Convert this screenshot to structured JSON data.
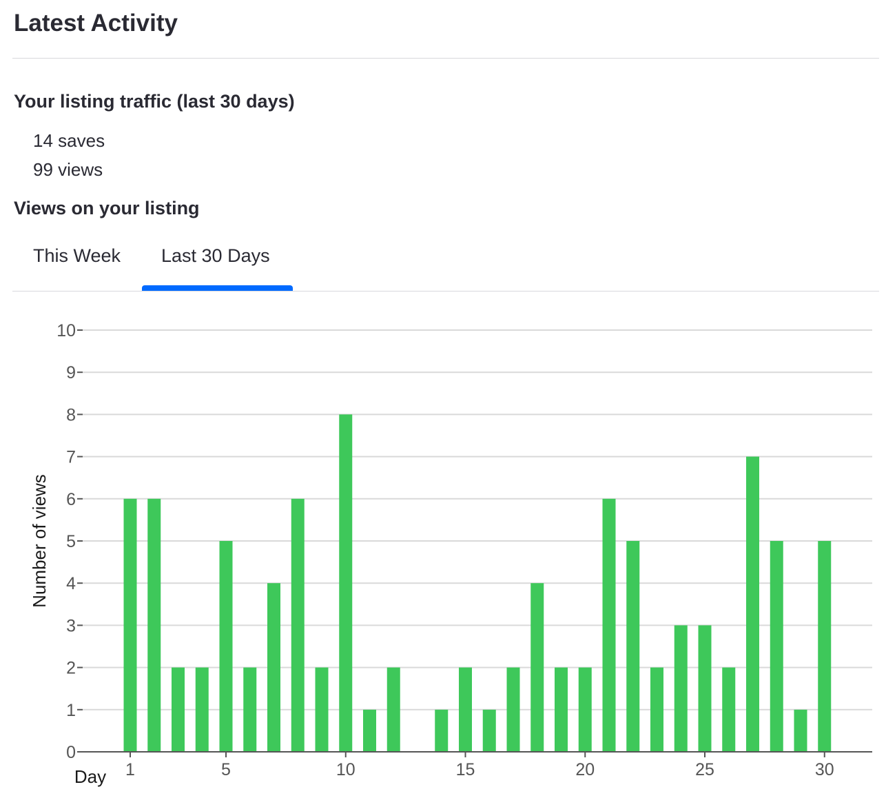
{
  "header": {
    "title": "Latest Activity"
  },
  "traffic": {
    "heading": "Your listing traffic (last 30 days)",
    "saves": "14 saves",
    "views": "99 views"
  },
  "views_section": {
    "heading": "Views on your listing",
    "tabs": [
      "This Week",
      "Last 30 Days"
    ],
    "active_tab": "Last 30 Days"
  },
  "colors": {
    "bar": "#3ec85a",
    "tab_indicator": "#006aff",
    "grid": "#d9d9d9",
    "axis": "#555555"
  },
  "chart_data": {
    "type": "bar",
    "xlabel": "Day",
    "ylabel": "Number of views",
    "categories": [
      1,
      2,
      3,
      4,
      5,
      6,
      7,
      8,
      9,
      10,
      11,
      12,
      13,
      14,
      15,
      16,
      17,
      18,
      19,
      20,
      21,
      22,
      23,
      24,
      25,
      26,
      27,
      28,
      29,
      30
    ],
    "values": [
      6,
      6,
      2,
      2,
      5,
      2,
      4,
      6,
      2,
      8,
      1,
      2,
      0,
      1,
      2,
      1,
      2,
      4,
      2,
      2,
      6,
      5,
      2,
      3,
      3,
      2,
      7,
      5,
      1,
      5
    ],
    "x_ticks": [
      1,
      5,
      10,
      15,
      20,
      25,
      30
    ],
    "y_ticks": [
      0,
      1,
      2,
      3,
      4,
      5,
      6,
      7,
      8,
      9,
      10
    ],
    "ylim": [
      0,
      10
    ],
    "grid": true
  }
}
